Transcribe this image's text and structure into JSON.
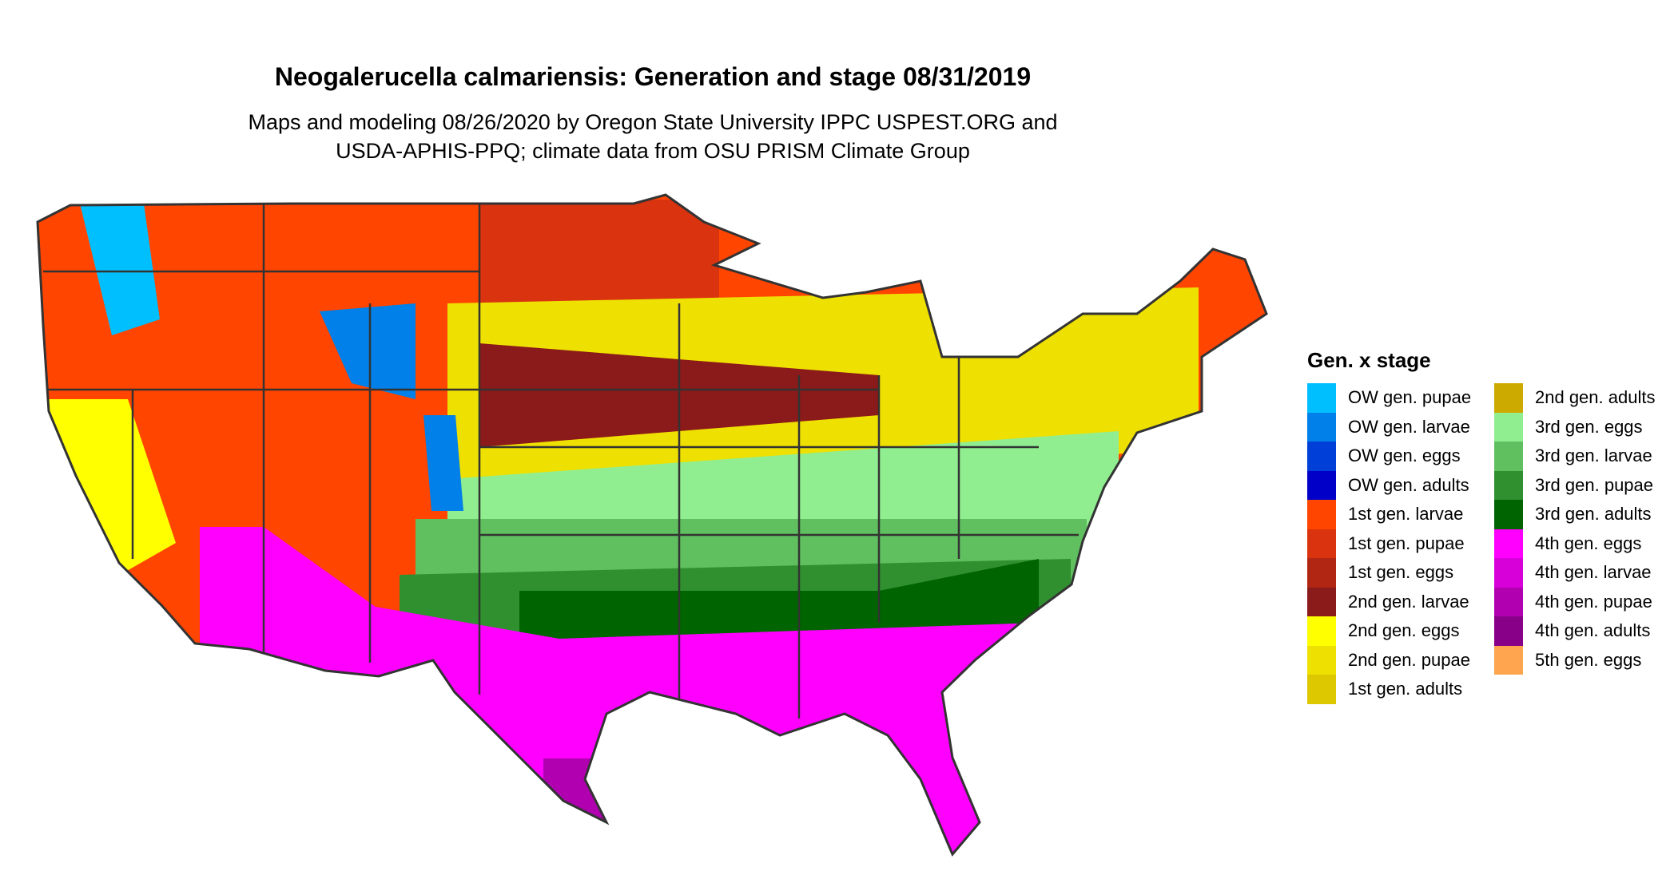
{
  "chart_data": {
    "type": "heatmap",
    "title": "Neogalerucella calmariensis: Generation and stage 08/31/2019",
    "subtitle_lines": [
      "Maps and modeling 08/26/2020 by Oregon State University IPPC USPEST.ORG and",
      "USDA-APHIS-PPQ; climate data from OSU PRISM Climate Group"
    ],
    "legend_title": "Gen. x stage",
    "legend_placement": "right",
    "legend": [
      {
        "label": "OW gen. pupae",
        "color": "#00BFFF"
      },
      {
        "label": "OW gen. larvae",
        "color": "#0080E8"
      },
      {
        "label": "OW gen. eggs",
        "color": "#0040D8"
      },
      {
        "label": "OW gen. adults",
        "color": "#0000C8"
      },
      {
        "label": "1st gen. larvae",
        "color": "#FF4500"
      },
      {
        "label": "1st gen. pupae",
        "color": "#D93310"
      },
      {
        "label": "1st gen. eggs",
        "color": "#B02613"
      },
      {
        "label": "2nd gen. larvae",
        "color": "#8B1A1A"
      },
      {
        "label": "2nd gen. eggs",
        "color": "#FFFF00"
      },
      {
        "label": "2nd gen. pupae",
        "color": "#EEE000"
      },
      {
        "label": "1st gen. adults",
        "color": "#DDC800"
      },
      {
        "label": "2nd gen. adults",
        "color": "#CDAA00"
      },
      {
        "label": "3rd gen. eggs",
        "color": "#90EE90"
      },
      {
        "label": "3rd gen. larvae",
        "color": "#60C060"
      },
      {
        "label": "3rd gen. pupae",
        "color": "#309030"
      },
      {
        "label": "3rd gen. adults",
        "color": "#006400"
      },
      {
        "label": "4th gen. eggs",
        "color": "#FF00FF"
      },
      {
        "label": "4th gen. larvae",
        "color": "#D800D8"
      },
      {
        "label": "4th gen. pupae",
        "color": "#B000B0"
      },
      {
        "label": "4th gen. adults",
        "color": "#880088"
      },
      {
        "label": "5th gen. eggs",
        "color": "#FFA54F"
      }
    ]
  }
}
